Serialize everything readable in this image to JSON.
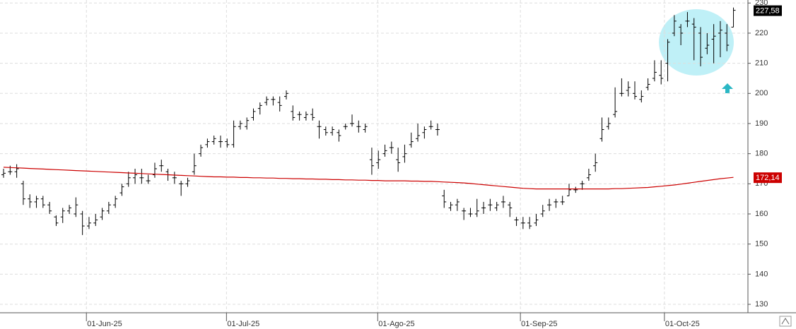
{
  "chart_data": {
    "type": "ohlc",
    "xlim": [
      -0.54,
      113.2
    ],
    "ylim": [
      127.2,
      231
    ],
    "yticks": [
      130,
      140,
      150,
      160,
      170,
      180,
      190,
      200,
      210,
      220,
      230
    ],
    "xticks": [
      {
        "value": 12.6,
        "label": "01-Jun-25"
      },
      {
        "value": 33.9,
        "label": "01-Jul-25"
      },
      {
        "value": 56.9,
        "label": "01-Ago-25"
      },
      {
        "value": 78.6,
        "label": "01-Sep-25"
      },
      {
        "value": 100.5,
        "label": "01-Oct-25"
      }
    ],
    "grid": true,
    "color": "#000000",
    "ma_color": "#cc0000",
    "ohlc": [
      [
        173,
        175,
        172,
        173.5
      ],
      [
        174,
        176,
        173,
        174
      ],
      [
        174,
        176.5,
        172,
        175
      ],
      [
        170,
        171,
        163,
        165
      ],
      [
        165,
        166.5,
        162,
        164
      ],
      [
        164,
        166,
        162,
        165
      ],
      [
        165,
        166,
        162,
        163
      ],
      [
        163,
        164,
        160,
        161
      ],
      [
        159,
        159.5,
        156,
        157
      ],
      [
        159,
        162,
        157,
        161
      ],
      [
        161,
        163,
        160,
        162
      ],
      [
        160,
        165.5,
        159,
        163
      ],
      [
        160,
        161,
        153,
        156
      ],
      [
        156,
        159,
        155,
        157
      ],
      [
        157,
        160,
        156,
        158
      ],
      [
        159,
        162,
        158,
        161
      ],
      [
        161,
        164,
        160,
        163
      ],
      [
        163,
        166,
        162,
        165
      ],
      [
        167,
        170,
        166,
        169
      ],
      [
        170,
        174,
        169,
        172
      ],
      [
        172,
        175,
        170,
        173
      ],
      [
        172,
        175,
        170,
        172
      ],
      [
        171,
        173,
        170,
        171
      ],
      [
        173,
        177,
        172,
        175
      ],
      [
        176,
        178,
        174,
        176
      ],
      [
        174,
        175,
        171,
        173
      ],
      [
        172,
        174,
        170,
        172
      ],
      [
        170,
        171,
        166,
        170
      ],
      [
        170,
        172,
        169,
        171
      ],
      [
        174,
        180,
        173,
        176
      ],
      [
        180,
        183,
        179,
        182
      ],
      [
        183,
        185,
        182,
        184
      ],
      [
        184,
        186,
        183,
        185
      ],
      [
        184,
        186,
        182,
        184
      ],
      [
        184,
        185,
        182,
        183
      ],
      [
        183,
        191,
        182,
        189
      ],
      [
        189,
        191,
        188,
        190
      ],
      [
        189,
        192,
        188,
        191
      ],
      [
        192,
        195,
        191,
        194
      ],
      [
        195,
        197,
        193,
        196
      ],
      [
        197,
        199,
        196,
        198
      ],
      [
        198,
        199,
        196,
        198
      ],
      [
        197,
        199,
        194,
        196
      ],
      [
        199,
        201,
        198,
        200
      ],
      [
        194,
        196,
        191,
        192
      ],
      [
        193,
        194,
        191,
        193
      ],
      [
        192,
        194,
        191,
        193
      ],
      [
        193,
        195,
        191,
        192
      ],
      [
        189,
        191,
        185,
        189
      ],
      [
        188,
        189,
        186,
        187
      ],
      [
        187,
        189,
        186,
        188
      ],
      [
        187,
        188,
        184,
        186
      ],
      [
        189,
        190,
        188,
        189
      ],
      [
        190,
        193,
        189,
        190
      ],
      [
        189,
        191,
        187,
        189
      ],
      [
        188,
        190,
        187,
        189
      ],
      [
        178,
        182,
        173,
        176
      ],
      [
        177,
        181,
        175,
        178
      ],
      [
        180,
        183,
        179,
        181
      ],
      [
        182,
        184,
        180,
        182
      ],
      [
        178,
        182,
        174,
        177
      ],
      [
        179,
        183,
        177,
        180
      ],
      [
        183,
        187,
        182,
        184
      ],
      [
        185,
        190,
        184,
        186
      ],
      [
        187,
        189,
        185,
        188
      ],
      [
        189,
        191,
        188,
        189
      ],
      [
        188,
        190,
        186,
        188
      ],
      [
        166,
        168,
        162,
        164
      ],
      [
        162,
        164,
        161,
        163
      ],
      [
        163,
        165,
        161,
        164
      ],
      [
        161,
        162,
        158,
        161
      ],
      [
        160,
        162,
        159,
        160
      ],
      [
        160,
        165,
        159,
        161
      ],
      [
        162,
        164,
        160,
        162
      ],
      [
        163,
        165,
        161,
        163
      ],
      [
        162,
        164,
        161,
        163
      ],
      [
        164,
        166,
        162,
        164
      ],
      [
        163,
        164,
        159,
        162
      ],
      [
        158,
        159,
        156,
        158
      ],
      [
        157,
        159,
        155,
        157
      ],
      [
        157,
        159,
        155,
        156
      ],
      [
        157,
        160,
        156,
        158
      ],
      [
        160,
        163,
        159,
        161
      ],
      [
        163,
        165,
        161,
        163
      ],
      [
        164,
        165,
        162,
        164
      ],
      [
        164,
        166,
        163,
        164
      ],
      [
        166,
        170,
        166,
        168
      ],
      [
        168,
        169,
        167,
        168
      ],
      [
        170,
        171,
        168,
        170
      ],
      [
        172,
        175,
        171,
        173
      ],
      [
        176,
        180,
        174,
        177
      ],
      [
        185,
        192,
        184,
        188
      ],
      [
        189,
        192,
        188,
        190
      ],
      [
        193,
        202,
        192,
        194
      ],
      [
        200,
        205,
        199,
        200
      ],
      [
        201,
        204,
        199,
        202
      ],
      [
        200,
        204,
        198,
        199
      ],
      [
        198,
        201,
        197,
        199
      ],
      [
        202,
        205,
        201,
        203
      ],
      [
        205,
        211,
        204,
        207
      ],
      [
        206,
        211,
        203,
        205
      ],
      [
        210,
        218,
        204,
        217
      ],
      [
        220,
        226,
        219,
        224
      ],
      [
        222,
        223,
        216,
        220
      ],
      [
        224,
        227,
        222,
        224
      ],
      [
        223,
        225,
        211,
        222
      ],
      [
        220,
        222,
        209,
        212
      ],
      [
        215,
        220,
        213,
        216
      ],
      [
        218,
        223,
        210,
        219
      ],
      [
        220,
        224,
        212,
        221
      ],
      [
        220,
        223,
        214,
        216
      ],
      [
        222,
        228.5,
        222,
        227.58
      ]
    ],
    "ma": [
      175.5,
      175.4,
      175.3,
      175.2,
      175.1,
      175.0,
      174.9,
      174.8,
      174.7,
      174.6,
      174.5,
      174.4,
      174.3,
      174.2,
      174.1,
      174.0,
      173.9,
      173.8,
      173.7,
      173.6,
      173.5,
      173.4,
      173.3,
      173.2,
      173.1,
      173.0,
      172.9,
      172.8,
      172.7,
      172.6,
      172.5,
      172.4,
      172.3,
      172.3,
      172.2,
      172.2,
      172.1,
      172.1,
      172.0,
      172.0,
      171.9,
      171.9,
      171.8,
      171.8,
      171.7,
      171.7,
      171.6,
      171.6,
      171.5,
      171.5,
      171.4,
      171.4,
      171.3,
      171.3,
      171.2,
      171.2,
      171.1,
      171.1,
      171.0,
      171.0,
      171.0,
      171.0,
      170.9,
      170.9,
      170.8,
      170.8,
      170.7,
      170.6,
      170.5,
      170.4,
      170.3,
      170.1,
      169.9,
      169.7,
      169.5,
      169.3,
      169.1,
      168.9,
      168.7,
      168.5,
      168.4,
      168.3,
      168.3,
      168.3,
      168.3,
      168.3,
      168.3,
      168.3,
      168.3,
      168.3,
      168.3,
      168.3,
      168.3,
      168.4,
      168.4,
      168.5,
      168.6,
      168.7,
      168.8,
      169.0,
      169.2,
      169.4,
      169.6,
      169.9,
      170.2,
      170.5,
      170.8,
      171.1,
      171.4,
      171.7,
      171.9,
      172.14
    ],
    "close_label": {
      "value": 227.58,
      "label": "227,58"
    },
    "ma_label": {
      "value": 172.14,
      "label": "172,14"
    }
  }
}
